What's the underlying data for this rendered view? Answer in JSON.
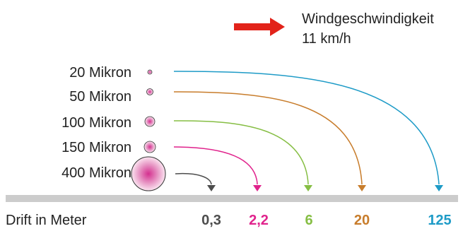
{
  "wind": {
    "line1": "Windgeschwindigkeit",
    "line2": "11 km/h",
    "arrow_color": "#e2231a",
    "arrow_icon": "arrow-right-icon"
  },
  "droplets": [
    {
      "label": "20 Mikron",
      "drift": "125",
      "color": "#1e9bc7"
    },
    {
      "label": "50 Mikron",
      "drift": "20",
      "color": "#c87d2c"
    },
    {
      "label": "100 Mikron",
      "drift": "6",
      "color": "#86be44"
    },
    {
      "label": "150 Mikron",
      "drift": "2,2",
      "color": "#e0238c"
    },
    {
      "label": "400 Mikron",
      "drift": "0,3",
      "color": "#4d4d4d"
    }
  ],
  "ground_color": "#cccccc",
  "drift_label": "Drift in Meter"
}
